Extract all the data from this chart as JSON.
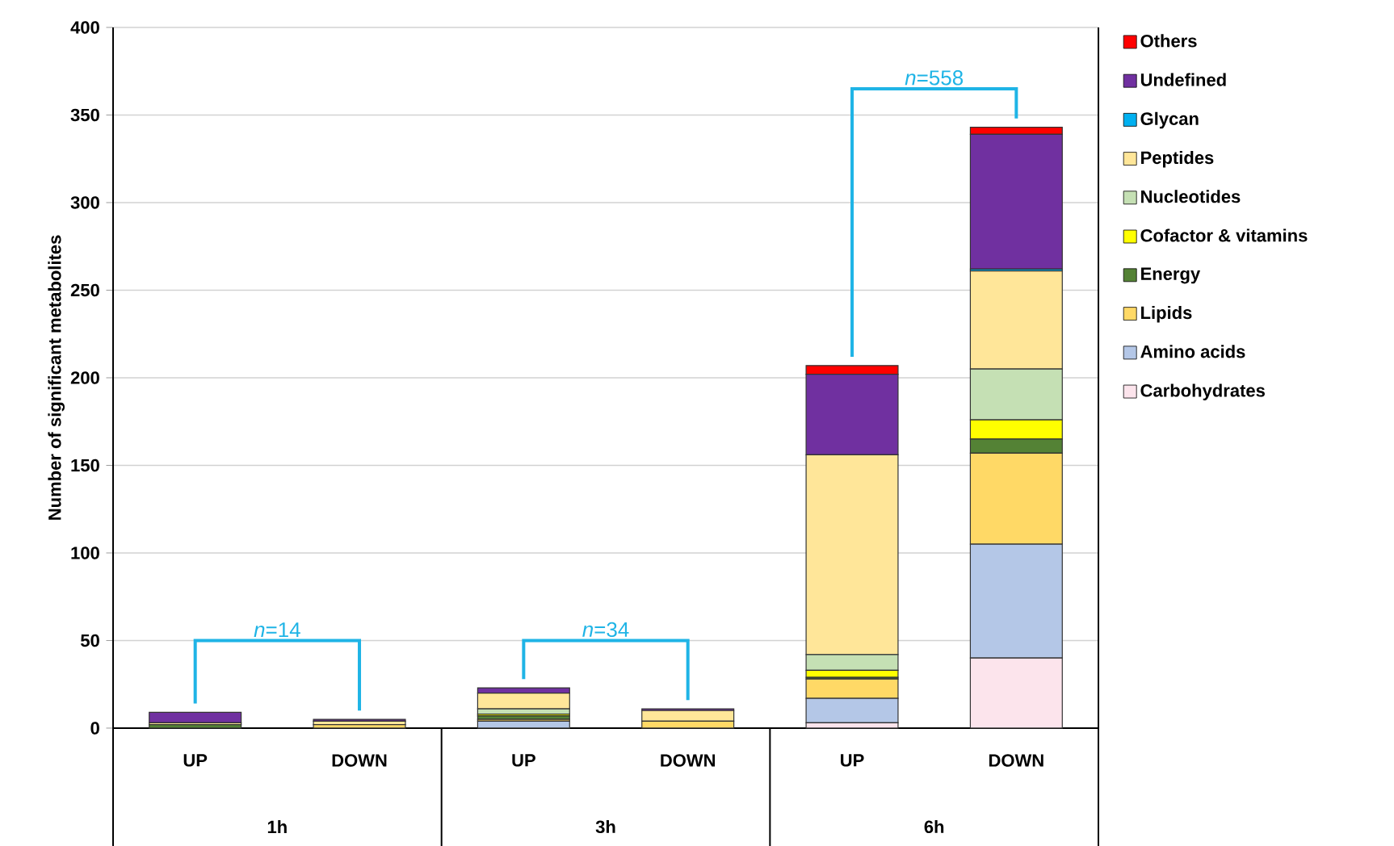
{
  "chart_data": {
    "type": "bar",
    "stacked": true,
    "ylabel": "Number of significant metabolites",
    "categories": [
      "UP",
      "DOWN",
      "UP",
      "DOWN",
      "UP",
      "DOWN"
    ],
    "series": [
      {
        "name": "Carbohydrates",
        "color": "#fce4ec",
        "values": [
          0,
          0,
          0,
          0,
          3,
          40
        ]
      },
      {
        "name": "Amino acids",
        "color": "#b4c7e7",
        "values": [
          0,
          0,
          4,
          0,
          14,
          65
        ]
      },
      {
        "name": "Lipids",
        "color": "#ffd966",
        "values": [
          0,
          2,
          1,
          4,
          11,
          52
        ]
      },
      {
        "name": "Energy",
        "color": "#548235",
        "values": [
          2,
          0,
          2,
          0,
          1,
          8
        ]
      },
      {
        "name": "Cofactor & vitamins",
        "color": "#ffff00",
        "values": [
          0,
          0,
          1,
          0,
          4,
          11
        ]
      },
      {
        "name": "Nucleotides",
        "color": "#c5e0b4",
        "values": [
          0,
          0,
          3,
          0,
          9,
          29
        ]
      },
      {
        "name": "Peptides",
        "color": "#ffe699",
        "values": [
          1,
          2,
          9,
          6,
          114,
          56
        ]
      },
      {
        "name": "Glycan",
        "color": "#00b0f0",
        "values": [
          0,
          0,
          0,
          0,
          0,
          1
        ]
      },
      {
        "name": "Undefined",
        "color": "#7030a0",
        "values": [
          6,
          1,
          3,
          1,
          46,
          77
        ]
      },
      {
        "name": "Others",
        "color": "#ff0000",
        "values": [
          0,
          0,
          0,
          0,
          5,
          4
        ]
      }
    ],
    "ylim": [
      0,
      400
    ],
    "yticks": [
      0,
      50,
      100,
      150,
      200,
      250,
      300,
      350,
      400
    ],
    "grid": "y",
    "legend": "right",
    "annotations": [
      "*n*=14",
      "*n*=34",
      "*n*=558",
      "1h",
      "3h",
      "6h"
    ]
  }
}
